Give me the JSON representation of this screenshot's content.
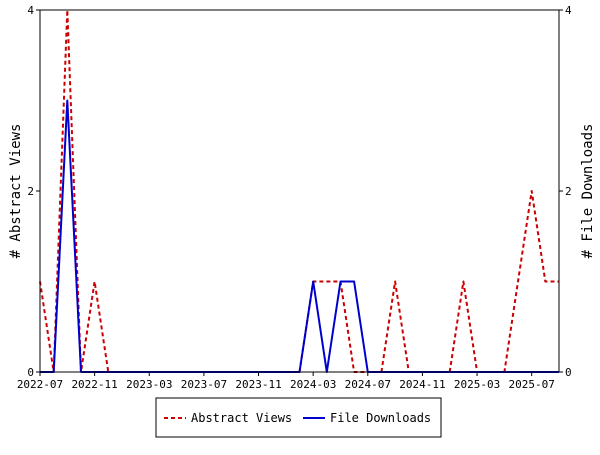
{
  "chart_data": {
    "type": "line",
    "title": "",
    "xlabel": "",
    "ylabel": "# Abstract Views",
    "y2label": "# File Downloads",
    "ylim": [
      0,
      4
    ],
    "y2lim": [
      0,
      4
    ],
    "yticks": [
      "0",
      "2",
      "4"
    ],
    "y2ticks": [
      "0",
      "2",
      "4"
    ],
    "xtick_labels": [
      "2022-07",
      "2022-11",
      "2023-03",
      "2023-07",
      "2023-11",
      "2024-03",
      "2024-07",
      "2024-11",
      "2025-03",
      "2025-07"
    ],
    "x": [
      "2022-07",
      "2022-08",
      "2022-09",
      "2022-10",
      "2022-11",
      "2022-12",
      "2023-01",
      "2023-02",
      "2023-03",
      "2023-04",
      "2023-05",
      "2023-06",
      "2023-07",
      "2023-08",
      "2023-09",
      "2023-10",
      "2023-11",
      "2023-12",
      "2024-01",
      "2024-02",
      "2024-03",
      "2024-04",
      "2024-05",
      "2024-06",
      "2024-07",
      "2024-08",
      "2024-09",
      "2024-10",
      "2024-11",
      "2024-12",
      "2025-01",
      "2025-02",
      "2025-03",
      "2025-04",
      "2025-05",
      "2025-06",
      "2025-07",
      "2025-08",
      "2025-09"
    ],
    "grid": false,
    "legend_position": "bottom",
    "series": [
      {
        "name": "Abstract Views",
        "axis": "left",
        "color": "#cc0000",
        "style": "dashed",
        "values": [
          1,
          0,
          4,
          0,
          1,
          0,
          0,
          0,
          0,
          0,
          0,
          0,
          0,
          0,
          0,
          0,
          0,
          0,
          0,
          0,
          1,
          1,
          1,
          0,
          0,
          0,
          1,
          0,
          0,
          0,
          0,
          1,
          0,
          0,
          0,
          1,
          2,
          1,
          1
        ]
      },
      {
        "name": "File Downloads",
        "axis": "right",
        "color": "#0000cc",
        "style": "solid",
        "values": [
          0,
          0,
          3,
          0,
          0,
          0,
          0,
          0,
          0,
          0,
          0,
          0,
          0,
          0,
          0,
          0,
          0,
          0,
          0,
          0,
          1,
          0,
          1,
          1,
          0,
          0,
          0,
          0,
          0,
          0,
          0,
          0,
          0,
          0,
          0,
          0,
          0,
          0,
          0
        ]
      }
    ]
  }
}
